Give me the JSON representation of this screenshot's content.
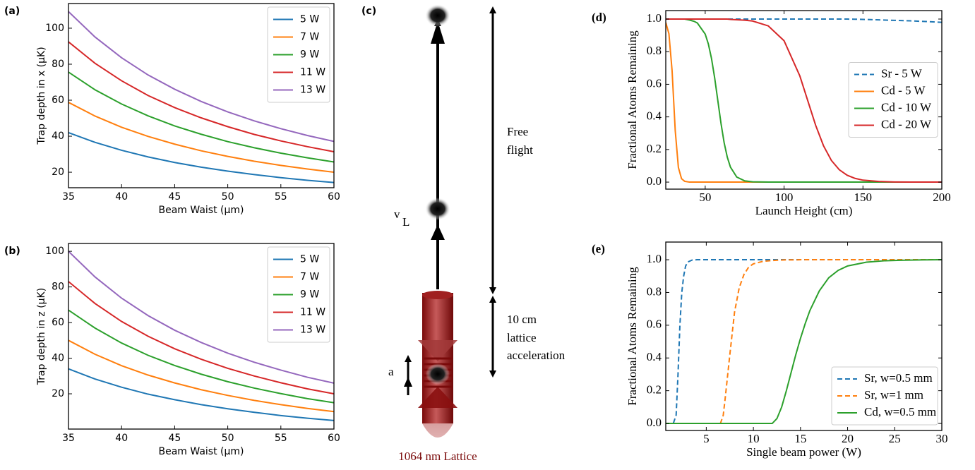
{
  "chart_data": [
    {
      "type": "line",
      "panel_label": "(a)",
      "xlabel": "Beam Waist (μm)",
      "ylabel": "Trap depth in x (μK)",
      "x": [
        35,
        37.5,
        40,
        42.5,
        45,
        47.5,
        50,
        52.5,
        55,
        57.5,
        60
      ],
      "xlim": [
        35,
        60
      ],
      "ylim": [
        11.4,
        113.7
      ],
      "xticks": [
        35,
        40,
        45,
        50,
        55,
        60
      ],
      "yticks": [
        20,
        40,
        60,
        80,
        100
      ],
      "legend": "upper right",
      "series": [
        {
          "name": "5 W",
          "color": "#1f77b4",
          "linestyle": "solid",
          "values": [
            42,
            36.6,
            32.2,
            28.5,
            25.4,
            22.8,
            20.6,
            18.7,
            17.0,
            15.5,
            14.3
          ]
        },
        {
          "name": "7 W",
          "color": "#ff7f0e",
          "linestyle": "solid",
          "values": [
            58.8,
            51.2,
            45.0,
            39.9,
            35.6,
            31.9,
            28.8,
            26.1,
            23.8,
            21.8,
            20.0
          ]
        },
        {
          "name": "9 W",
          "color": "#2ca02c",
          "linestyle": "solid",
          "values": [
            75.6,
            65.8,
            57.9,
            51.3,
            45.7,
            41.1,
            37.0,
            33.6,
            30.6,
            28.0,
            25.7
          ]
        },
        {
          "name": "11 W",
          "color": "#d62728",
          "linestyle": "solid",
          "values": [
            92.4,
            80.5,
            70.8,
            62.6,
            55.9,
            50.2,
            45.3,
            41.0,
            37.4,
            34.2,
            31.4
          ]
        },
        {
          "name": "13 W",
          "color": "#9467bd",
          "linestyle": "solid",
          "values": [
            109.2,
            95.1,
            83.6,
            74.0,
            66.1,
            59.3,
            53.5,
            48.5,
            44.2,
            40.4,
            37.1
          ]
        }
      ]
    },
    {
      "type": "line",
      "panel_label": "(b)",
      "xlabel": "Beam Waist (μm)",
      "ylabel": "Trap depth in z (μK)",
      "x": [
        35,
        37.5,
        40,
        42.5,
        45,
        47.5,
        50,
        52.5,
        55,
        57.5,
        60
      ],
      "xlim": [
        35,
        60
      ],
      "ylim": [
        0.2,
        104.4
      ],
      "xticks": [
        35,
        40,
        45,
        50,
        55,
        60
      ],
      "yticks": [
        20,
        40,
        60,
        80,
        100
      ],
      "legend": "upper right",
      "series": [
        {
          "name": "5 W",
          "color": "#1f77b4",
          "linestyle": "solid",
          "values": [
            34,
            28.3,
            23.7,
            19.8,
            16.7,
            13.9,
            11.6,
            9.6,
            7.8,
            6.3,
            5
          ]
        },
        {
          "name": "7 W",
          "color": "#ff7f0e",
          "linestyle": "solid",
          "values": [
            50,
            42.2,
            35.8,
            30.5,
            26.1,
            22.3,
            19.1,
            16.3,
            13.9,
            11.8,
            10
          ]
        },
        {
          "name": "9 W",
          "color": "#2ca02c",
          "linestyle": "solid",
          "values": [
            67,
            56.9,
            48.5,
            41.6,
            35.9,
            31.0,
            26.8,
            23.2,
            20.1,
            17.3,
            15
          ]
        },
        {
          "name": "11 W",
          "color": "#d62728",
          "linestyle": "solid",
          "values": [
            83,
            70.7,
            60.6,
            52.3,
            45.3,
            39.4,
            34.3,
            30.0,
            26.2,
            22.8,
            20
          ]
        },
        {
          "name": "13 W",
          "color": "#9467bd",
          "linestyle": "solid",
          "values": [
            100,
            85.6,
            73.7,
            63.9,
            55.7,
            48.8,
            42.8,
            37.7,
            33.3,
            29.3,
            26
          ]
        }
      ]
    },
    {
      "type": "line",
      "panel_label": "(d)",
      "xlabel": "Launch Height (cm)",
      "ylabel": "Fractional Atoms Remaining",
      "x": [
        25,
        27,
        29,
        31,
        33,
        35,
        37,
        40,
        43,
        45,
        50,
        52,
        54,
        56,
        58,
        60,
        62,
        64,
        66,
        70,
        75,
        80,
        90,
        100,
        110,
        115,
        120,
        125,
        130,
        135,
        140,
        145,
        150,
        160,
        170,
        180,
        190,
        200
      ],
      "xlim": [
        25,
        200
      ],
      "ylim": [
        -0.043,
        1.052
      ],
      "xticks": [
        50,
        100,
        150,
        200
      ],
      "yticks": [
        {
          "value": 0,
          "label": "0.0"
        },
        0.2,
        0.4,
        0.6,
        0.8,
        {
          "value": 1,
          "label": "1.0"
        }
      ],
      "legend": "center right",
      "series": [
        {
          "name": "Sr - 5 W",
          "color": "#1f77b4",
          "linestyle": "dashed",
          "values": [
            1,
            1,
            1,
            1,
            1,
            1,
            1,
            1,
            1,
            1,
            1,
            1,
            1,
            1,
            1,
            1,
            1,
            1,
            1,
            1,
            1,
            1,
            1,
            1,
            1,
            1,
            1,
            1,
            1,
            1,
            1,
            0.999,
            0.998,
            0.995,
            0.992,
            0.989,
            0.985,
            0.98
          ]
        },
        {
          "name": "Cd - 5 W",
          "color": "#ff7f0e",
          "linestyle": "solid",
          "values": [
            0.979,
            0.91,
            0.684,
            0.316,
            0.09,
            0.021,
            0.005,
            0,
            0,
            0,
            0,
            0,
            0,
            0,
            0,
            0,
            0,
            0,
            0,
            0,
            0,
            0,
            0,
            0,
            0,
            0,
            0,
            0,
            0,
            0,
            0,
            0,
            0,
            0,
            0,
            0,
            0,
            0
          ]
        },
        {
          "name": "Cd - 10 W",
          "color": "#2ca02c",
          "linestyle": "solid",
          "values": [
            1,
            1,
            1,
            1,
            1,
            1,
            1,
            0.994,
            0.986,
            0.976,
            0.908,
            0.847,
            0.758,
            0.639,
            0.5,
            0.361,
            0.242,
            0.153,
            0.092,
            0.031,
            0.008,
            0.002,
            0,
            0,
            0,
            0,
            0,
            0,
            0,
            0,
            0,
            0,
            0,
            0,
            0,
            0,
            0,
            0
          ]
        },
        {
          "name": "Cd - 20 W",
          "color": "#d62728",
          "linestyle": "solid",
          "values": [
            1,
            1,
            1,
            1,
            1,
            1,
            1,
            1,
            1,
            1,
            1,
            1,
            1,
            1,
            1,
            1,
            1,
            1,
            0.998,
            0.996,
            0.993,
            0.988,
            0.958,
            0.867,
            0.651,
            0.5,
            0.349,
            0.223,
            0.133,
            0.076,
            0.042,
            0.023,
            0.012,
            0.004,
            0.001,
            0,
            0,
            0
          ]
        }
      ]
    },
    {
      "type": "line",
      "panel_label": "(e)",
      "xlabel": "Single beam power (W)",
      "ylabel": "Fractional Atoms Remaining",
      "x": [
        0.7,
        1,
        1.5,
        1.8,
        2,
        2.2,
        2.4,
        2.6,
        2.8,
        3,
        3.5,
        4,
        5,
        6,
        6.5,
        6.8,
        7,
        7.5,
        8,
        8.5,
        9,
        9.5,
        10,
        11,
        12,
        12.5,
        13,
        13.5,
        14,
        14.5,
        15,
        15.5,
        16,
        17,
        18,
        19,
        20,
        22,
        24,
        26,
        28,
        30
      ],
      "xlim": [
        0.7,
        30
      ],
      "ylim": [
        -0.043,
        1.108
      ],
      "xticks": [
        5,
        10,
        15,
        20,
        25,
        30
      ],
      "yticks": [
        {
          "value": 0,
          "label": "0.0"
        },
        0.2,
        0.4,
        0.6,
        0.8,
        {
          "value": 1,
          "label": "1.0"
        }
      ],
      "legend": "lower right",
      "series": [
        {
          "name": "Sr, w=0.5 mm",
          "color": "#1f77b4",
          "linestyle": "dashed",
          "values": [
            0,
            0,
            0,
            0.05,
            0.3,
            0.6,
            0.8,
            0.9,
            0.96,
            0.985,
            0.998,
            1,
            1,
            1,
            1,
            1,
            1,
            1,
            1,
            1,
            1,
            1,
            1,
            1,
            1,
            1,
            1,
            1,
            1,
            1,
            1,
            1,
            1,
            1,
            1,
            1,
            1,
            1,
            1,
            1,
            1,
            1
          ]
        },
        {
          "name": "Sr, w=1 mm",
          "color": "#ff7f0e",
          "linestyle": "dashed",
          "values": [
            0,
            0,
            0,
            0,
            0,
            0,
            0,
            0,
            0,
            0,
            0,
            0,
            0,
            0,
            0,
            0.05,
            0.15,
            0.42,
            0.68,
            0.83,
            0.91,
            0.955,
            0.975,
            0.99,
            0.995,
            0.997,
            0.998,
            0.999,
            0.999,
            0.999,
            1,
            1,
            1,
            1,
            1,
            1,
            1,
            1,
            1,
            1,
            1,
            1
          ]
        },
        {
          "name": "Cd, w=0.5 mm",
          "color": "#2ca02c",
          "linestyle": "solid",
          "values": [
            0,
            0,
            0,
            0,
            0,
            0,
            0,
            0,
            0,
            0,
            0,
            0,
            0,
            0,
            0,
            0,
            0,
            0,
            0,
            0,
            0,
            0,
            0,
            0,
            0,
            0.03,
            0.1,
            0.2,
            0.31,
            0.42,
            0.52,
            0.61,
            0.69,
            0.81,
            0.89,
            0.935,
            0.962,
            0.985,
            0.994,
            0.997,
            0.999,
            1
          ]
        }
      ]
    }
  ],
  "diagram": {
    "panel_label": "(c)",
    "free_flight": [
      "Free",
      "flight"
    ],
    "acceleration_text": [
      "10 cm",
      "lattice",
      "acceleration"
    ],
    "velocity_label": "v",
    "velocity_subscript": "L",
    "acceleration_label": "a",
    "lattice_label": "1064 nm Lattice"
  }
}
